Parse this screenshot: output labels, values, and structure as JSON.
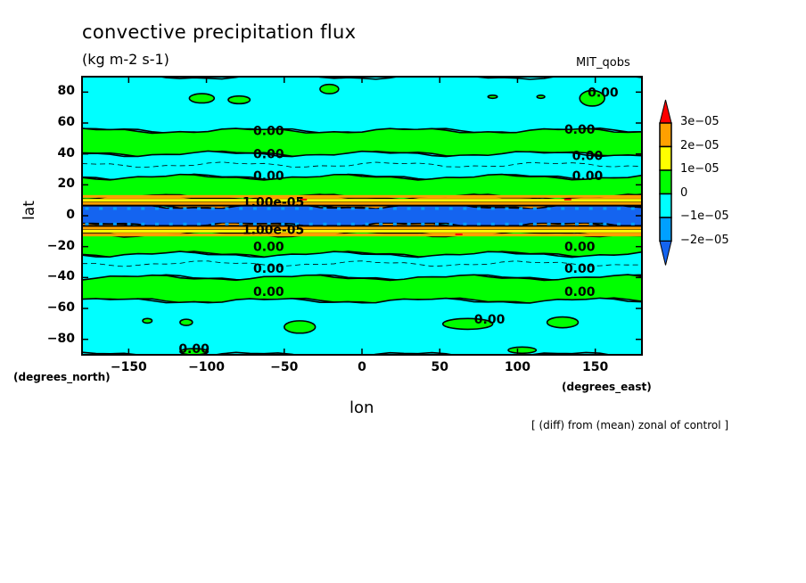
{
  "chart_data": {
    "type": "heatmap",
    "subtype": "filled-contour",
    "title": "convective precipitation flux",
    "units": "(kg m-2 s-1)",
    "dataset_label": "MIT_qobs",
    "xlabel": "lon",
    "ylabel": "lat",
    "x_units_note": "(degrees_east)",
    "y_units_note": "(degrees_north)",
    "footnote": "[ (diff) from (mean) zonal of control ]",
    "xlim": [
      -180,
      180
    ],
    "ylim": [
      -90,
      90
    ],
    "x_ticks": [
      -150,
      -100,
      -50,
      0,
      50,
      100,
      150
    ],
    "x_tick_labels": [
      "−150",
      "−100",
      "−50",
      "0",
      "50",
      "100",
      "150"
    ],
    "y_ticks": [
      80,
      60,
      40,
      20,
      0,
      -20,
      -40,
      -60,
      -80
    ],
    "y_tick_labels": [
      "80",
      "60",
      "40",
      "20",
      "0",
      "−20",
      "−40",
      "−60",
      "−80"
    ],
    "colorbar": {
      "levels": [
        -2e-05,
        -1e-05,
        0,
        1e-05,
        2e-05,
        3e-05
      ],
      "level_labels": [
        "3e−05",
        "2e−05",
        "1e−05",
        "0",
        "−1e−05",
        "−2e−05"
      ],
      "colors": [
        "#1464f0",
        "#00a0ff",
        "#00ffff",
        "#00ff00",
        "#ffff00",
        "#ffa000",
        "#ff0000"
      ],
      "extend": "both"
    },
    "zonal_bands": [
      {
        "lat_min": 55,
        "lat_max": 90,
        "class": "neg_small",
        "color": "#00ffff"
      },
      {
        "lat_min": 40,
        "lat_max": 55,
        "class": "pos_small",
        "color": "#00ff00"
      },
      {
        "lat_min": 25,
        "lat_max": 40,
        "class": "neg_small",
        "color": "#00ffff"
      },
      {
        "lat_min": 12,
        "lat_max": 25,
        "class": "pos_small",
        "color": "#00ff00"
      },
      {
        "lat_min": 6,
        "lat_max": 12,
        "class": "pos_large",
        "color": "#ffa000"
      },
      {
        "lat_min": -6,
        "lat_max": 6,
        "class": "neg_large",
        "color": "#1464f0"
      },
      {
        "lat_min": -12,
        "lat_max": -6,
        "class": "pos_large",
        "color": "#ffa000"
      },
      {
        "lat_min": -25,
        "lat_max": -12,
        "class": "pos_small",
        "color": "#00ff00"
      },
      {
        "lat_min": -40,
        "lat_max": -25,
        "class": "neg_small",
        "color": "#00ffff"
      },
      {
        "lat_min": -55,
        "lat_max": -40,
        "class": "pos_small",
        "color": "#00ff00"
      },
      {
        "lat_min": -90,
        "lat_max": -55,
        "class": "neg_small",
        "color": "#00ffff"
      }
    ],
    "contour_labels": [
      {
        "text": "0.00",
        "lon": -60,
        "lat": 55
      },
      {
        "text": "0.00",
        "lon": 140,
        "lat": 56
      },
      {
        "text": "0.00",
        "lon": 155,
        "lat": 80
      },
      {
        "text": "0.00",
        "lon": -60,
        "lat": 40
      },
      {
        "text": "0.00",
        "lon": 145,
        "lat": 39
      },
      {
        "text": "0.00",
        "lon": -60,
        "lat": 26
      },
      {
        "text": "0.00",
        "lon": 145,
        "lat": 26
      },
      {
        "text": "0.00",
        "lon": -60,
        "lat": -20
      },
      {
        "text": "0.00",
        "lon": 140,
        "lat": -20
      },
      {
        "text": "0.00",
        "lon": -60,
        "lat": -34
      },
      {
        "text": "0.00",
        "lon": 140,
        "lat": -34
      },
      {
        "text": "0.00",
        "lon": -60,
        "lat": -49
      },
      {
        "text": "0.00",
        "lon": 140,
        "lat": -49
      },
      {
        "text": "0.00",
        "lon": 82,
        "lat": -67
      },
      {
        "text": "0.00",
        "lon": -108,
        "lat": -86
      },
      {
        "text": "1.00e-05",
        "lon": -57,
        "lat": 9
      },
      {
        "text": "1.00e-05",
        "lon": -57,
        "lat": -9
      }
    ]
  }
}
